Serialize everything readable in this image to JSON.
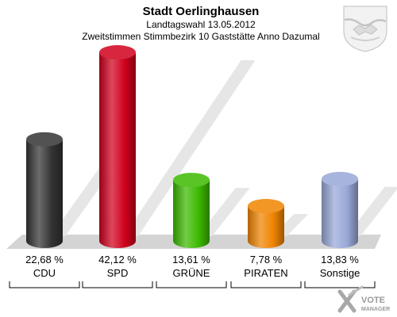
{
  "chart_data": {
    "type": "bar",
    "title": "Stadt Oerlinghausen",
    "subtitle": "Landtagswahl 13.05.2012",
    "subtitle2": "Zweitstimmen Stimmbezirk 10 Gaststätte Anno Dazumal",
    "categories": [
      "CDU",
      "SPD",
      "GRÜNE",
      "PIRATEN",
      "Sonstige"
    ],
    "values": [
      22.68,
      42.12,
      13.61,
      7.78,
      13.83
    ],
    "value_labels": [
      "22,68 %",
      "42,12 %",
      "13,61 %",
      "7,78 %",
      "13,83 %"
    ],
    "colors": [
      "#333333",
      "#d0001c",
      "#3cb900",
      "#f08400",
      "#98a8d8"
    ],
    "ylim": [
      0,
      45
    ],
    "xlabel": "",
    "ylabel": "",
    "grid": false
  },
  "watermark": {
    "line1": "VOTE",
    "line2": "MANAGER",
    "icon": "vote-manager-x-logo"
  },
  "emblem": {
    "icon": "coat-of-arms-icon"
  }
}
